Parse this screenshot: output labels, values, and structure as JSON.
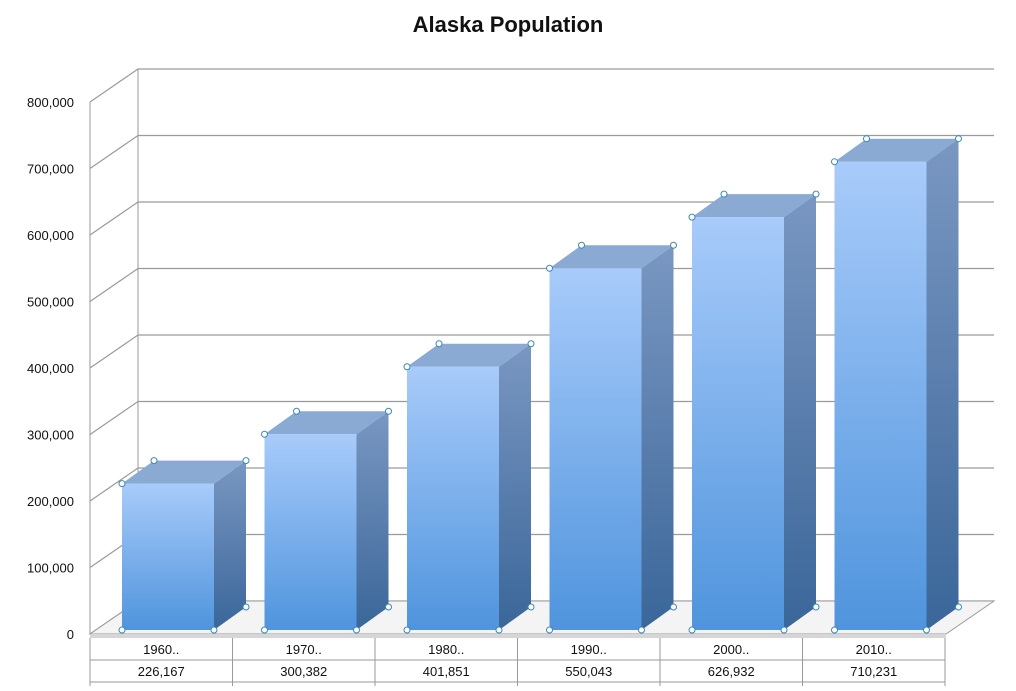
{
  "chart_data": {
    "type": "bar",
    "title": "Alaska Population",
    "categories": [
      "1960..",
      "1970..",
      "1980..",
      "1990..",
      "2000..",
      "2010.."
    ],
    "values": [
      226167,
      300382,
      401851,
      550043,
      626932,
      710231
    ],
    "value_labels": [
      "226,167",
      "300,382",
      "401,851",
      "550,043",
      "626,932",
      "710,231"
    ],
    "ylim": [
      0,
      800000
    ],
    "yticks": [
      0,
      100000,
      200000,
      300000,
      400000,
      500000,
      600000,
      700000,
      800000
    ],
    "ytick_labels": [
      "0",
      "100,000",
      "200,000",
      "300,000",
      "400,000",
      "500,000",
      "600,000",
      "700,000",
      "800,000"
    ],
    "grid": true,
    "style": "3d",
    "data_table": true
  },
  "colors": {
    "bar_top": "#a8cbfa",
    "bar_bottom": "#4f94dd",
    "bar_cap": "#8aa9d3",
    "bar_side_top": "#7a97c2",
    "bar_side_bottom": "#3a6699",
    "grid": "#9a9a9a"
  }
}
